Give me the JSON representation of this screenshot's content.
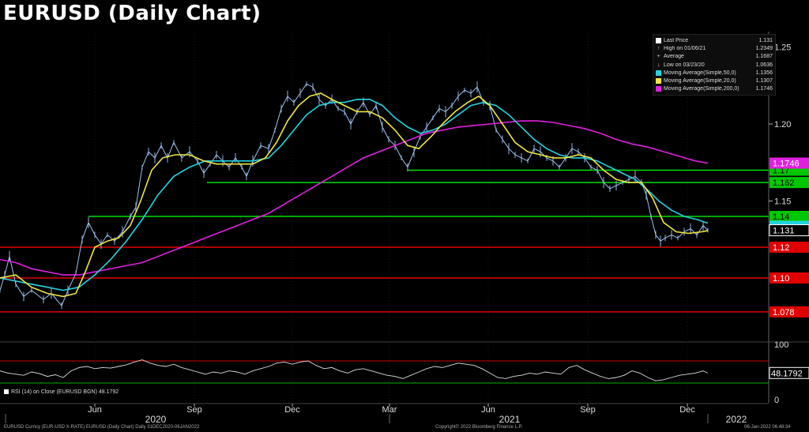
{
  "title": "EURUSD (Daily Chart)",
  "legend": [
    {
      "symbol": "square",
      "color": "#ffffff",
      "label": "Last Price",
      "value": "1.131"
    },
    {
      "symbol": "up-tick",
      "color": "#cccccc",
      "label": "High on 01/06/21",
      "value": "1.2349"
    },
    {
      "symbol": "plus",
      "color": "#cccccc",
      "label": "Average",
      "value": "1.1687"
    },
    {
      "symbol": "down-tick",
      "color": "#cccccc",
      "label": "Low on 03/23/20",
      "value": "1.0636"
    },
    {
      "symbol": "square",
      "color": "#22d3e0",
      "label": "Moving Average(Simple,50,0)",
      "value": "1.1356"
    },
    {
      "symbol": "square",
      "color": "#f0e640",
      "label": "Moving Average(Simple,20,0)",
      "value": "1.1307"
    },
    {
      "symbol": "square",
      "color": "#e020e0",
      "label": "Moving Average(Simple,200,0)",
      "value": "1.1746"
    }
  ],
  "rsi_label": "RSI (14)  on Close (EURUSD BGN) 48.1792",
  "footer": {
    "left": "EURUSD Curncy (EUR-USD X-RATE) EURUSD (Daily Chart)  Daily 31DEC2020-06JAN2022",
    "center": "Copyright© 2022 Bloomberg Finance L.P.",
    "right": "06-Jan-2022 06:48:34"
  },
  "chart_data": {
    "type": "line",
    "ylim": [
      1.06,
      1.26
    ],
    "y_ticks": [
      "1.25",
      "1.20",
      "1.15"
    ],
    "x_month_labels": [
      "Jun",
      "Sep",
      "Dec",
      "Mar",
      "Jun",
      "Sep",
      "Dec"
    ],
    "x_year_labels": [
      "2020",
      "2021",
      "2022"
    ],
    "levels": [
      {
        "value": 1.17,
        "label": "1.17",
        "color": "#00e000",
        "box": "#00c800"
      },
      {
        "value": 1.162,
        "label": "1.162",
        "color": "#00e000",
        "box": "#00c800"
      },
      {
        "value": 1.14,
        "label": "1.14",
        "color": "#00e000",
        "box": "#00c800"
      },
      {
        "value": 1.12,
        "label": "1.12",
        "color": "#e00000",
        "box": "#e00000"
      },
      {
        "value": 1.1,
        "label": "1.10",
        "color": "#e00000",
        "box": "#e00000"
      },
      {
        "value": 1.078,
        "label": "1.078",
        "color": "#e00000",
        "box": "#e00000"
      }
    ],
    "last_price": {
      "value": 1.131,
      "label": "1.131"
    },
    "ma200_tag": {
      "value": 1.1746,
      "label": "1.1746"
    },
    "ma50_last": 1.1356,
    "price_series": [
      [
        0,
        1.092
      ],
      [
        6,
        1.102
      ],
      [
        12,
        1.114
      ],
      [
        20,
        1.096
      ],
      [
        30,
        1.088
      ],
      [
        40,
        1.092
      ],
      [
        55,
        1.086
      ],
      [
        65,
        1.09
      ],
      [
        78,
        1.082
      ],
      [
        86,
        1.092
      ],
      [
        96,
        1.103
      ],
      [
        104,
        1.125
      ],
      [
        112,
        1.136
      ],
      [
        120,
        1.128
      ],
      [
        128,
        1.122
      ],
      [
        136,
        1.128
      ],
      [
        145,
        1.124
      ],
      [
        155,
        1.13
      ],
      [
        165,
        1.14
      ],
      [
        172,
        1.146
      ],
      [
        180,
        1.172
      ],
      [
        188,
        1.182
      ],
      [
        196,
        1.178
      ],
      [
        204,
        1.186
      ],
      [
        212,
        1.178
      ],
      [
        220,
        1.188
      ],
      [
        230,
        1.178
      ],
      [
        240,
        1.182
      ],
      [
        250,
        1.176
      ],
      [
        258,
        1.168
      ],
      [
        266,
        1.174
      ],
      [
        274,
        1.18
      ],
      [
        282,
        1.176
      ],
      [
        290,
        1.172
      ],
      [
        298,
        1.178
      ],
      [
        306,
        1.172
      ],
      [
        312,
        1.166
      ],
      [
        320,
        1.176
      ],
      [
        330,
        1.186
      ],
      [
        340,
        1.184
      ],
      [
        348,
        1.196
      ],
      [
        356,
        1.21
      ],
      [
        364,
        1.218
      ],
      [
        372,
        1.214
      ],
      [
        380,
        1.22
      ],
      [
        388,
        1.226
      ],
      [
        396,
        1.224
      ],
      [
        404,
        1.216
      ],
      [
        412,
        1.212
      ],
      [
        420,
        1.216
      ],
      [
        428,
        1.21
      ],
      [
        436,
        1.208
      ],
      [
        444,
        1.2
      ],
      [
        452,
        1.208
      ],
      [
        460,
        1.214
      ],
      [
        468,
        1.206
      ],
      [
        476,
        1.212
      ],
      [
        484,
        1.198
      ],
      [
        492,
        1.19
      ],
      [
        500,
        1.186
      ],
      [
        508,
        1.178
      ],
      [
        516,
        1.172
      ],
      [
        524,
        1.182
      ],
      [
        532,
        1.192
      ],
      [
        540,
        1.198
      ],
      [
        548,
        1.204
      ],
      [
        556,
        1.21
      ],
      [
        564,
        1.208
      ],
      [
        572,
        1.212
      ],
      [
        580,
        1.218
      ],
      [
        588,
        1.222
      ],
      [
        596,
        1.22
      ],
      [
        604,
        1.224
      ],
      [
        612,
        1.214
      ],
      [
        620,
        1.212
      ],
      [
        628,
        1.196
      ],
      [
        636,
        1.19
      ],
      [
        644,
        1.184
      ],
      [
        652,
        1.18
      ],
      [
        660,
        1.178
      ],
      [
        668,
        1.176
      ],
      [
        676,
        1.184
      ],
      [
        684,
        1.182
      ],
      [
        692,
        1.178
      ],
      [
        700,
        1.176
      ],
      [
        708,
        1.172
      ],
      [
        716,
        1.178
      ],
      [
        724,
        1.184
      ],
      [
        732,
        1.182
      ],
      [
        740,
        1.178
      ],
      [
        748,
        1.172
      ],
      [
        756,
        1.17
      ],
      [
        764,
        1.162
      ],
      [
        772,
        1.158
      ],
      [
        780,
        1.16
      ],
      [
        788,
        1.162
      ],
      [
        796,
        1.164
      ],
      [
        804,
        1.166
      ],
      [
        812,
        1.162
      ],
      [
        818,
        1.154
      ],
      [
        824,
        1.14
      ],
      [
        830,
        1.128
      ],
      [
        836,
        1.124
      ],
      [
        842,
        1.126
      ],
      [
        850,
        1.128
      ],
      [
        858,
        1.126
      ],
      [
        866,
        1.13
      ],
      [
        874,
        1.132
      ],
      [
        882,
        1.128
      ],
      [
        890,
        1.134
      ],
      [
        896,
        1.131
      ]
    ],
    "ma20_series": [
      [
        0,
        1.1
      ],
      [
        20,
        1.102
      ],
      [
        40,
        1.094
      ],
      [
        60,
        1.09
      ],
      [
        80,
        1.088
      ],
      [
        96,
        1.09
      ],
      [
        108,
        1.104
      ],
      [
        120,
        1.12
      ],
      [
        136,
        1.124
      ],
      [
        150,
        1.126
      ],
      [
        165,
        1.134
      ],
      [
        178,
        1.15
      ],
      [
        192,
        1.17
      ],
      [
        206,
        1.178
      ],
      [
        222,
        1.18
      ],
      [
        240,
        1.18
      ],
      [
        258,
        1.176
      ],
      [
        274,
        1.174
      ],
      [
        290,
        1.174
      ],
      [
        306,
        1.174
      ],
      [
        320,
        1.174
      ],
      [
        336,
        1.178
      ],
      [
        350,
        1.188
      ],
      [
        364,
        1.202
      ],
      [
        378,
        1.212
      ],
      [
        392,
        1.218
      ],
      [
        406,
        1.22
      ],
      [
        420,
        1.216
      ],
      [
        436,
        1.212
      ],
      [
        452,
        1.208
      ],
      [
        468,
        1.208
      ],
      [
        484,
        1.204
      ],
      [
        500,
        1.196
      ],
      [
        516,
        1.186
      ],
      [
        530,
        1.184
      ],
      [
        546,
        1.192
      ],
      [
        560,
        1.2
      ],
      [
        576,
        1.208
      ],
      [
        592,
        1.214
      ],
      [
        606,
        1.218
      ],
      [
        620,
        1.212
      ],
      [
        636,
        1.2
      ],
      [
        652,
        1.188
      ],
      [
        668,
        1.182
      ],
      [
        684,
        1.18
      ],
      [
        700,
        1.178
      ],
      [
        716,
        1.178
      ],
      [
        732,
        1.18
      ],
      [
        748,
        1.178
      ],
      [
        764,
        1.17
      ],
      [
        780,
        1.164
      ],
      [
        796,
        1.162
      ],
      [
        812,
        1.162
      ],
      [
        826,
        1.152
      ],
      [
        840,
        1.136
      ],
      [
        856,
        1.13
      ],
      [
        872,
        1.129
      ],
      [
        888,
        1.13
      ],
      [
        896,
        1.1307
      ]
    ],
    "ma50_series": [
      [
        0,
        1.1
      ],
      [
        20,
        1.098
      ],
      [
        40,
        1.096
      ],
      [
        60,
        1.094
      ],
      [
        80,
        1.092
      ],
      [
        100,
        1.094
      ],
      [
        120,
        1.102
      ],
      [
        140,
        1.112
      ],
      [
        160,
        1.124
      ],
      [
        180,
        1.138
      ],
      [
        200,
        1.154
      ],
      [
        220,
        1.166
      ],
      [
        240,
        1.172
      ],
      [
        260,
        1.176
      ],
      [
        280,
        1.176
      ],
      [
        300,
        1.176
      ],
      [
        320,
        1.176
      ],
      [
        340,
        1.178
      ],
      [
        356,
        1.186
      ],
      [
        372,
        1.196
      ],
      [
        388,
        1.206
      ],
      [
        404,
        1.212
      ],
      [
        420,
        1.214
      ],
      [
        436,
        1.214
      ],
      [
        452,
        1.216
      ],
      [
        468,
        1.216
      ],
      [
        484,
        1.212
      ],
      [
        500,
        1.204
      ],
      [
        516,
        1.198
      ],
      [
        532,
        1.194
      ],
      [
        548,
        1.196
      ],
      [
        564,
        1.2
      ],
      [
        580,
        1.206
      ],
      [
        596,
        1.212
      ],
      [
        612,
        1.214
      ],
      [
        628,
        1.212
      ],
      [
        644,
        1.206
      ],
      [
        660,
        1.198
      ],
      [
        676,
        1.19
      ],
      [
        692,
        1.184
      ],
      [
        708,
        1.18
      ],
      [
        724,
        1.178
      ],
      [
        740,
        1.178
      ],
      [
        756,
        1.176
      ],
      [
        772,
        1.172
      ],
      [
        788,
        1.168
      ],
      [
        804,
        1.164
      ],
      [
        818,
        1.158
      ],
      [
        834,
        1.15
      ],
      [
        850,
        1.144
      ],
      [
        866,
        1.14
      ],
      [
        882,
        1.138
      ],
      [
        896,
        1.1356
      ]
    ],
    "ma200_series": [
      [
        0,
        1.112
      ],
      [
        20,
        1.11
      ],
      [
        40,
        1.106
      ],
      [
        60,
        1.104
      ],
      [
        80,
        1.102
      ],
      [
        100,
        1.102
      ],
      [
        120,
        1.104
      ],
      [
        140,
        1.106
      ],
      [
        160,
        1.108
      ],
      [
        180,
        1.11
      ],
      [
        200,
        1.114
      ],
      [
        220,
        1.118
      ],
      [
        240,
        1.122
      ],
      [
        260,
        1.126
      ],
      [
        280,
        1.13
      ],
      [
        300,
        1.134
      ],
      [
        320,
        1.138
      ],
      [
        340,
        1.142
      ],
      [
        360,
        1.148
      ],
      [
        380,
        1.154
      ],
      [
        400,
        1.16
      ],
      [
        420,
        1.166
      ],
      [
        440,
        1.172
      ],
      [
        460,
        1.178
      ],
      [
        480,
        1.182
      ],
      [
        500,
        1.186
      ],
      [
        520,
        1.19
      ],
      [
        540,
        1.194
      ],
      [
        560,
        1.196
      ],
      [
        580,
        1.198
      ],
      [
        600,
        1.199
      ],
      [
        620,
        1.2
      ],
      [
        640,
        1.201
      ],
      [
        660,
        1.202
      ],
      [
        680,
        1.202
      ],
      [
        700,
        1.201
      ],
      [
        720,
        1.199
      ],
      [
        740,
        1.197
      ],
      [
        760,
        1.194
      ],
      [
        780,
        1.19
      ],
      [
        800,
        1.187
      ],
      [
        820,
        1.185
      ],
      [
        840,
        1.182
      ],
      [
        860,
        1.179
      ],
      [
        880,
        1.176
      ],
      [
        896,
        1.1746
      ]
    ],
    "rsi": {
      "ylim": [
        0,
        100
      ],
      "ticks": [
        "100",
        "0"
      ],
      "last": {
        "value": 48.1792,
        "label": "48.1792"
      },
      "series": [
        [
          0,
          52
        ],
        [
          10,
          48
        ],
        [
          20,
          46
        ],
        [
          30,
          44
        ],
        [
          40,
          50
        ],
        [
          50,
          47
        ],
        [
          60,
          42
        ],
        [
          70,
          45
        ],
        [
          80,
          40
        ],
        [
          90,
          52
        ],
        [
          100,
          58
        ],
        [
          110,
          60
        ],
        [
          120,
          56
        ],
        [
          130,
          58
        ],
        [
          140,
          57
        ],
        [
          150,
          60
        ],
        [
          160,
          63
        ],
        [
          170,
          68
        ],
        [
          180,
          72
        ],
        [
          190,
          66
        ],
        [
          200,
          62
        ],
        [
          210,
          60
        ],
        [
          220,
          64
        ],
        [
          230,
          58
        ],
        [
          240,
          54
        ],
        [
          250,
          50
        ],
        [
          260,
          46
        ],
        [
          270,
          50
        ],
        [
          280,
          48
        ],
        [
          290,
          52
        ],
        [
          300,
          50
        ],
        [
          310,
          46
        ],
        [
          320,
          52
        ],
        [
          330,
          56
        ],
        [
          340,
          60
        ],
        [
          350,
          66
        ],
        [
          360,
          68
        ],
        [
          370,
          64
        ],
        [
          380,
          68
        ],
        [
          390,
          70
        ],
        [
          400,
          62
        ],
        [
          410,
          56
        ],
        [
          420,
          58
        ],
        [
          430,
          52
        ],
        [
          440,
          48
        ],
        [
          450,
          54
        ],
        [
          460,
          56
        ],
        [
          470,
          52
        ],
        [
          480,
          48
        ],
        [
          490,
          44
        ],
        [
          500,
          42
        ],
        [
          510,
          38
        ],
        [
          520,
          44
        ],
        [
          530,
          50
        ],
        [
          540,
          56
        ],
        [
          550,
          60
        ],
        [
          560,
          58
        ],
        [
          570,
          62
        ],
        [
          580,
          66
        ],
        [
          590,
          64
        ],
        [
          600,
          62
        ],
        [
          610,
          56
        ],
        [
          620,
          48
        ],
        [
          630,
          40
        ],
        [
          640,
          38
        ],
        [
          650,
          42
        ],
        [
          660,
          44
        ],
        [
          670,
          48
        ],
        [
          680,
          46
        ],
        [
          690,
          50
        ],
        [
          700,
          48
        ],
        [
          710,
          46
        ],
        [
          720,
          58
        ],
        [
          730,
          62
        ],
        [
          740,
          54
        ],
        [
          750,
          48
        ],
        [
          760,
          42
        ],
        [
          770,
          38
        ],
        [
          780,
          40
        ],
        [
          790,
          44
        ],
        [
          800,
          52
        ],
        [
          810,
          48
        ],
        [
          820,
          40
        ],
        [
          830,
          34
        ],
        [
          840,
          36
        ],
        [
          850,
          40
        ],
        [
          860,
          44
        ],
        [
          870,
          46
        ],
        [
          880,
          48
        ],
        [
          890,
          52
        ],
        [
          896,
          48
        ]
      ]
    }
  }
}
